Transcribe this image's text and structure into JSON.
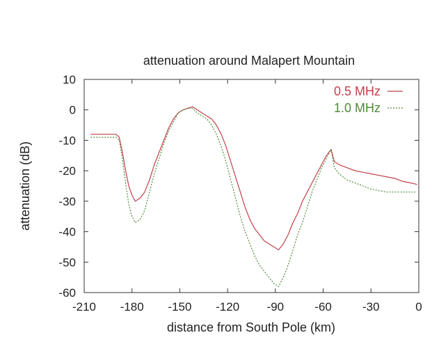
{
  "chart_data": {
    "type": "line",
    "title": "attenuation around Malapert Mountain",
    "xlabel": "distance from South Pole (km)",
    "ylabel": "attenuation (dB)",
    "xlim": [
      -210,
      0
    ],
    "ylim": [
      -60,
      10
    ],
    "xticks": [
      -210,
      -180,
      -150,
      -120,
      -90,
      -60,
      -30,
      0
    ],
    "yticks": [
      10,
      0,
      -10,
      -20,
      -30,
      -40,
      -50,
      -60
    ],
    "grid": false,
    "legend_position": "top-right",
    "series": [
      {
        "name": "0.5 MHz",
        "color": "#c0404a",
        "style": "solid",
        "x": [
          -206,
          -200,
          -194,
          -190,
          -188,
          -186,
          -184,
          -182,
          -180,
          -178,
          -175,
          -172,
          -169,
          -166,
          -163,
          -160,
          -157,
          -154,
          -151,
          -148,
          -145,
          -142,
          -139,
          -136,
          -133,
          -130,
          -127,
          -124,
          -121,
          -118,
          -115,
          -112,
          -109,
          -106,
          -103,
          -100,
          -97,
          -94,
          -91,
          -88,
          -85,
          -82,
          -79,
          -76,
          -73,
          -70,
          -67,
          -64,
          -61,
          -58,
          -55,
          -53,
          -50,
          -45,
          -40,
          -35,
          -30,
          -25,
          -20,
          -15,
          -10,
          -5,
          -1
        ],
        "y": [
          -8,
          -8,
          -8,
          -8,
          -9,
          -14,
          -20,
          -25,
          -28,
          -30,
          -29,
          -27,
          -23,
          -18,
          -14,
          -10,
          -6,
          -3,
          -1,
          0,
          0.5,
          1,
          0,
          -1,
          -2,
          -3,
          -5,
          -8,
          -12,
          -17,
          -22,
          -27,
          -32,
          -36,
          -39,
          -41,
          -43,
          -44,
          -45,
          -46,
          -44,
          -41,
          -37,
          -34,
          -30,
          -27,
          -24,
          -21,
          -18,
          -15,
          -13,
          -17,
          -18,
          -19,
          -20,
          -20.5,
          -21,
          -21.5,
          -22,
          -22.5,
          -23.5,
          -24,
          -24.5
        ]
      },
      {
        "name": "1.0 MHz",
        "color": "#4f8a3a",
        "style": "dotted",
        "x": [
          -206,
          -200,
          -194,
          -190,
          -188,
          -186,
          -184,
          -182,
          -180,
          -178,
          -175,
          -172,
          -169,
          -166,
          -163,
          -160,
          -157,
          -154,
          -151,
          -148,
          -145,
          -142,
          -139,
          -136,
          -133,
          -130,
          -127,
          -124,
          -121,
          -118,
          -115,
          -112,
          -109,
          -106,
          -103,
          -100,
          -97,
          -94,
          -91,
          -88,
          -85,
          -82,
          -79,
          -76,
          -73,
          -70,
          -67,
          -64,
          -61,
          -58,
          -55,
          -53,
          -50,
          -45,
          -40,
          -35,
          -30,
          -25,
          -20,
          -15,
          -10,
          -5,
          -1
        ],
        "y": [
          -9,
          -9,
          -9,
          -9,
          -10,
          -16,
          -24,
          -31,
          -35,
          -37,
          -36,
          -33,
          -27,
          -21,
          -16,
          -11,
          -7,
          -4,
          -1,
          0,
          0.5,
          0.5,
          -1,
          -2,
          -3,
          -5,
          -8,
          -12,
          -17,
          -23,
          -29,
          -35,
          -40,
          -44,
          -48,
          -51,
          -53,
          -55,
          -57,
          -58,
          -55,
          -51,
          -46,
          -41,
          -37,
          -32,
          -27,
          -23,
          -19,
          -16,
          -13,
          -19,
          -21,
          -23,
          -24,
          -25,
          -26,
          -26.5,
          -27,
          -27,
          -27,
          -27,
          -27
        ]
      }
    ]
  }
}
